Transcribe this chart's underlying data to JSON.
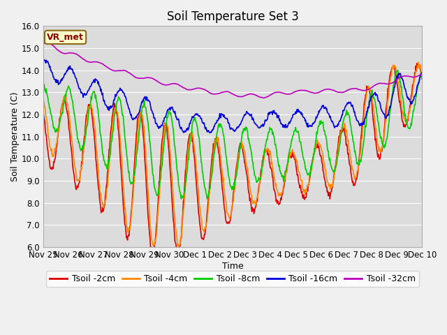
{
  "title": "Soil Temperature Set 3",
  "xlabel": "Time",
  "ylabel": "Soil Temperature (C)",
  "ylim": [
    6.0,
    16.0
  ],
  "yticks": [
    6.0,
    7.0,
    8.0,
    9.0,
    10.0,
    11.0,
    12.0,
    13.0,
    14.0,
    15.0,
    16.0
  ],
  "xtick_labels": [
    "Nov 25",
    "Nov 26",
    "Nov 27",
    "Nov 28",
    "Nov 29",
    "Nov 30",
    "Dec 1",
    "Dec 2",
    "Dec 3",
    "Dec 4",
    "Dec 5",
    "Dec 6",
    "Dec 7",
    "Dec 8",
    "Dec 9",
    "Dec 10"
  ],
  "series_colors": [
    "#dd0000",
    "#ff8800",
    "#00cc00",
    "#0000dd",
    "#bb00bb"
  ],
  "series_labels": [
    "Tsoil -2cm",
    "Tsoil -4cm",
    "Tsoil -8cm",
    "Tsoil -16cm",
    "Tsoil -32cm"
  ],
  "vr_met_label": "VR_met",
  "plot_bg_color": "#dcdcdc",
  "fig_bg_color": "#f0f0f0",
  "grid_color": "#ffffff",
  "title_fontsize": 12,
  "axis_label_fontsize": 9,
  "tick_fontsize": 8.5,
  "legend_fontsize": 9,
  "linewidth": 1.2
}
